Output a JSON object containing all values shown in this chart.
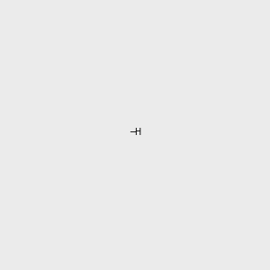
{
  "background_color": "#ebebeb",
  "bond_color": "#000000",
  "atom_colors": {
    "N": "#2020ff",
    "O": "#ff0000",
    "Cl": "#228B22",
    "C": "#000000"
  },
  "font_size_atoms": 8.5,
  "line_width": 1.4,
  "dbo": 0.018
}
